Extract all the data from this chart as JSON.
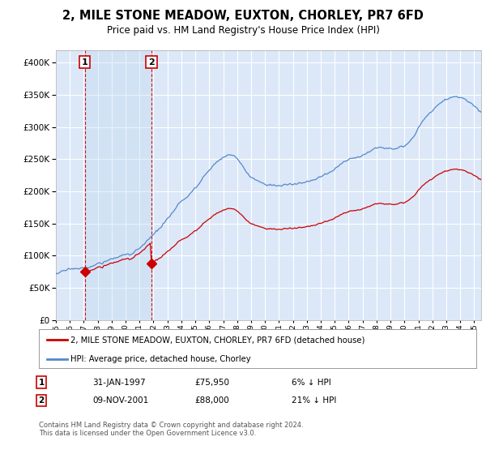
{
  "title": "2, MILE STONE MEADOW, EUXTON, CHORLEY, PR7 6FD",
  "subtitle": "Price paid vs. HM Land Registry's House Price Index (HPI)",
  "legend_line1": "2, MILE STONE MEADOW, EUXTON, CHORLEY, PR7 6FD (detached house)",
  "legend_line2": "HPI: Average price, detached house, Chorley",
  "footer": "Contains HM Land Registry data © Crown copyright and database right 2024.\nThis data is licensed under the Open Government Licence v3.0.",
  "sale1_date": "31-JAN-1997",
  "sale1_price": 75950,
  "sale1_label": "1",
  "sale1_hpi": "6% ↓ HPI",
  "sale2_date": "09-NOV-2001",
  "sale2_price": 88000,
  "sale2_label": "2",
  "sale2_hpi": "21% ↓ HPI",
  "ylim": [
    0,
    420000
  ],
  "yticks": [
    0,
    50000,
    100000,
    150000,
    200000,
    250000,
    300000,
    350000,
    400000
  ],
  "background_color": "#dce8f8",
  "grid_color": "#ffffff",
  "red_line_color": "#cc0000",
  "blue_line_color": "#5588cc",
  "sale1_x": 1997.08,
  "sale2_x": 2001.85,
  "vline_color": "#cc0000",
  "marker_color": "#cc0000"
}
